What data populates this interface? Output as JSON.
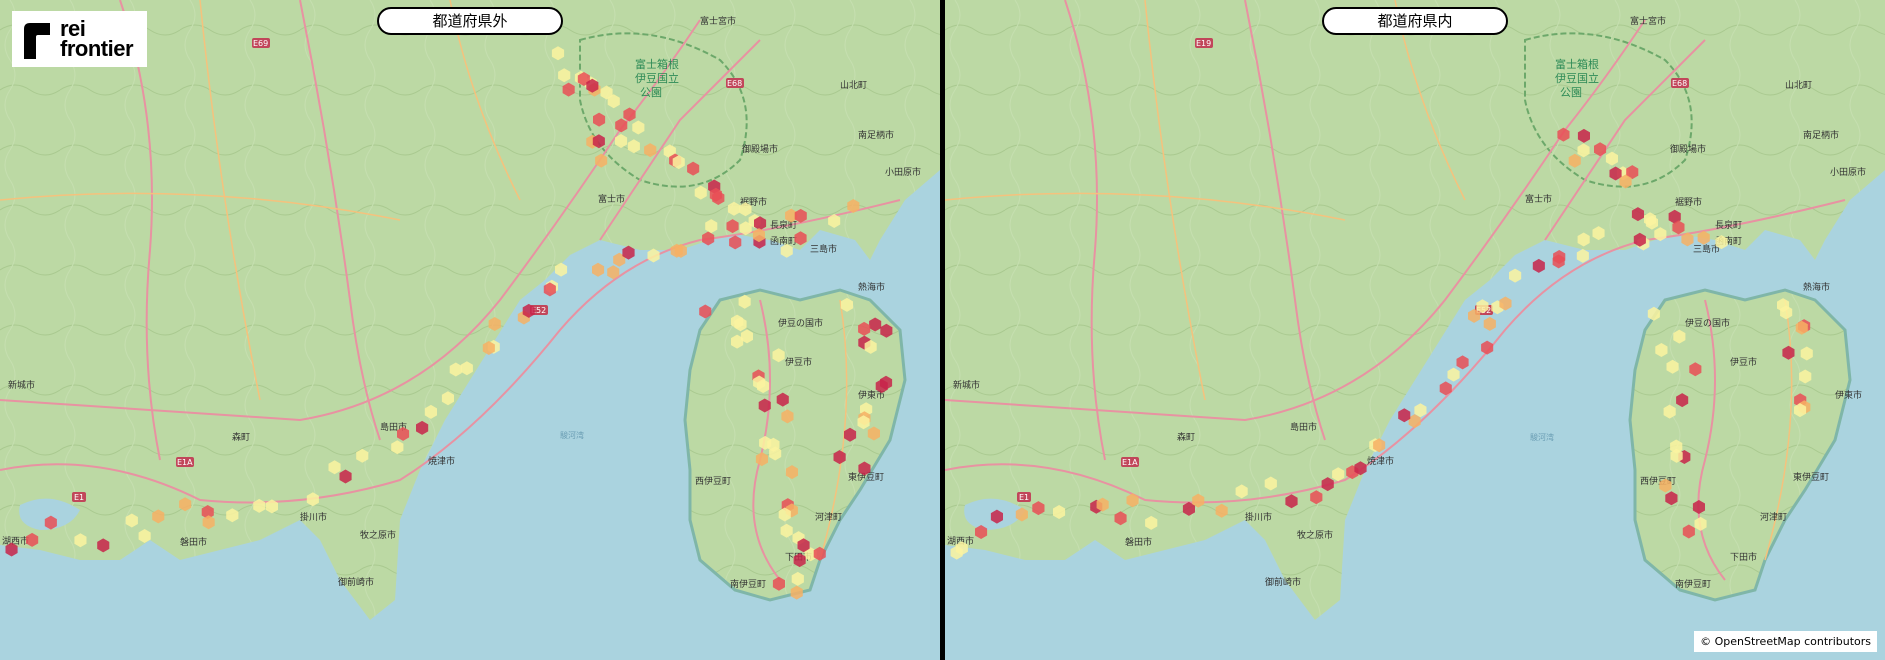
{
  "logo": {
    "line1": "rei",
    "line2": "frontier"
  },
  "panels": [
    {
      "title": "都道府県外"
    },
    {
      "title": "都道府県内"
    }
  ],
  "attribution": "© OpenStreetMap contributors",
  "map_labels": {
    "park": [
      "富士箱根",
      "伊豆国立",
      "公園"
    ],
    "cities": [
      "富士宮市",
      "御殿場市",
      "南足柄市",
      "小田原市",
      "富士市",
      "三島市",
      "熱海市",
      "新城市",
      "島田市",
      "焼津市",
      "伊東市",
      "伊豆の国市",
      "牧之原市",
      "御前崎市",
      "湖西市",
      "掛川市",
      "磐田市",
      "下田市",
      "裾野市",
      "伊豆市",
      "西伊豆町",
      "南伊豆町",
      "山北町",
      "函南町",
      "長泉町",
      "森町",
      "東伊豆町",
      "河津町",
      "駿河湾"
    ],
    "roads": [
      "E69",
      "E1A",
      "E52",
      "E1",
      "E68",
      "E19",
      "E69 474"
    ]
  },
  "colors": {
    "sea": "#aad3df",
    "land": "#b8d6a0",
    "hex_low": "#fbf3a0",
    "hex_mid": "#f7b064",
    "hex_high": "#e94e56",
    "hex_top": "#c8234a"
  }
}
